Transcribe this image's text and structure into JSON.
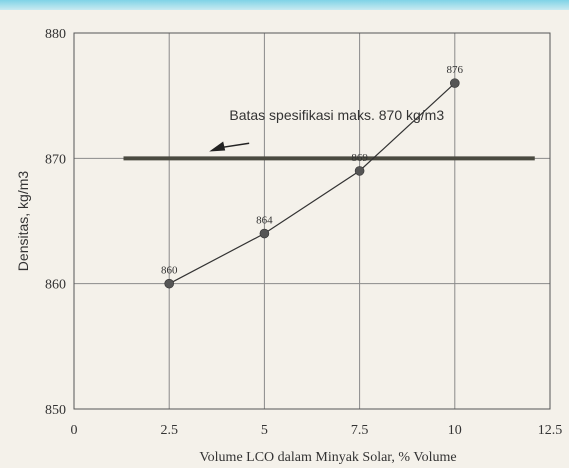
{
  "chart_data": {
    "type": "line",
    "xlabel": "Volume LCO dalam Minyak Solar, % Volume",
    "ylabel": "Densitas, kg/m3",
    "xlim": [
      0,
      12.5
    ],
    "ylim": [
      850,
      880
    ],
    "x_ticks": [
      "0",
      "2.5",
      "5",
      "7.5",
      "10",
      "12.5"
    ],
    "y_ticks": [
      "850",
      "860",
      "870",
      "880"
    ],
    "grid": true,
    "series": [
      {
        "x": [
          2.5,
          5,
          7.5,
          10
        ],
        "y": [
          860,
          864,
          869,
          876
        ],
        "labels": [
          "860",
          "864",
          "869",
          "876"
        ]
      }
    ],
    "reference_line": {
      "y": 870,
      "x_start": 1.3,
      "x_end": 12.1
    },
    "annotation": {
      "text": "Batas spesifikasi maks. 870 kg/m3"
    },
    "colors": {
      "line": "#333333",
      "reference": "#4a4a40",
      "grid": "#8a8a8a",
      "point": "#555555",
      "accent": "#7fd3e6"
    }
  }
}
